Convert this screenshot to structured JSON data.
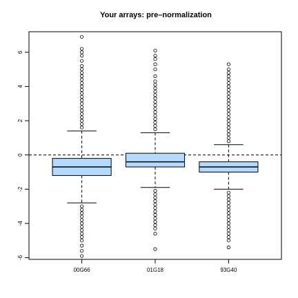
{
  "chart_data": {
    "type": "boxplot",
    "title": "Your arrays: pre–normalization",
    "xlabel": "",
    "ylabel": "",
    "categories": [
      "00G66",
      "01G18",
      "93G40"
    ],
    "ylim": [
      -6.1,
      7.2
    ],
    "yticks": [
      -6,
      -4,
      -2,
      0,
      2,
      4,
      6
    ],
    "reference_line": 0,
    "box_fill": "#b3d9ff",
    "boxes": [
      {
        "name": "00G66",
        "whisker_low": -2.8,
        "q1": -1.2,
        "median": -0.7,
        "q3": -0.2,
        "whisker_high": 1.4,
        "outliers_high": [
          1.6,
          1.8,
          2.0,
          2.2,
          2.4,
          2.6,
          2.8,
          3.0,
          3.2,
          3.4,
          3.6,
          3.8,
          4.0,
          4.2,
          4.4,
          4.6,
          4.8,
          5.0,
          5.2,
          5.5,
          5.8,
          6.0,
          6.2,
          6.9
        ],
        "outliers_low": [
          -3.0,
          -3.2,
          -3.4,
          -3.6,
          -3.8,
          -4.0,
          -4.2,
          -4.4,
          -4.6,
          -4.8,
          -5.0,
          -5.3,
          -5.6,
          -5.9
        ]
      },
      {
        "name": "01G18",
        "whisker_low": -1.9,
        "q1": -0.7,
        "median": -0.4,
        "q3": 0.1,
        "whisker_high": 1.3,
        "outliers_high": [
          1.5,
          1.7,
          1.9,
          2.1,
          2.3,
          2.5,
          2.7,
          2.9,
          3.1,
          3.3,
          3.5,
          3.7,
          3.9,
          4.1,
          4.3,
          4.6,
          5.0,
          5.3,
          5.6,
          5.8,
          6.1
        ],
        "outliers_low": [
          -2.1,
          -2.3,
          -2.5,
          -2.7,
          -2.9,
          -3.1,
          -3.3,
          -3.5,
          -3.7,
          -3.9,
          -4.1,
          -4.3,
          -4.6,
          -5.5
        ]
      },
      {
        "name": "93G40",
        "whisker_low": -2.0,
        "q1": -1.0,
        "median": -0.7,
        "q3": -0.4,
        "whisker_high": 0.6,
        "outliers_high": [
          0.8,
          1.0,
          1.2,
          1.4,
          1.6,
          1.8,
          2.0,
          2.2,
          2.4,
          2.6,
          2.8,
          3.0,
          3.2,
          3.4,
          3.6,
          3.8,
          4.0,
          4.2,
          4.4,
          4.6,
          4.8,
          5.0,
          5.3
        ],
        "outliers_low": [
          -2.2,
          -2.4,
          -2.6,
          -2.8,
          -3.0,
          -3.2,
          -3.4,
          -3.6,
          -3.8,
          -4.0,
          -4.2,
          -4.4,
          -4.6,
          -4.8,
          -5.0,
          -5.4
        ]
      }
    ]
  }
}
